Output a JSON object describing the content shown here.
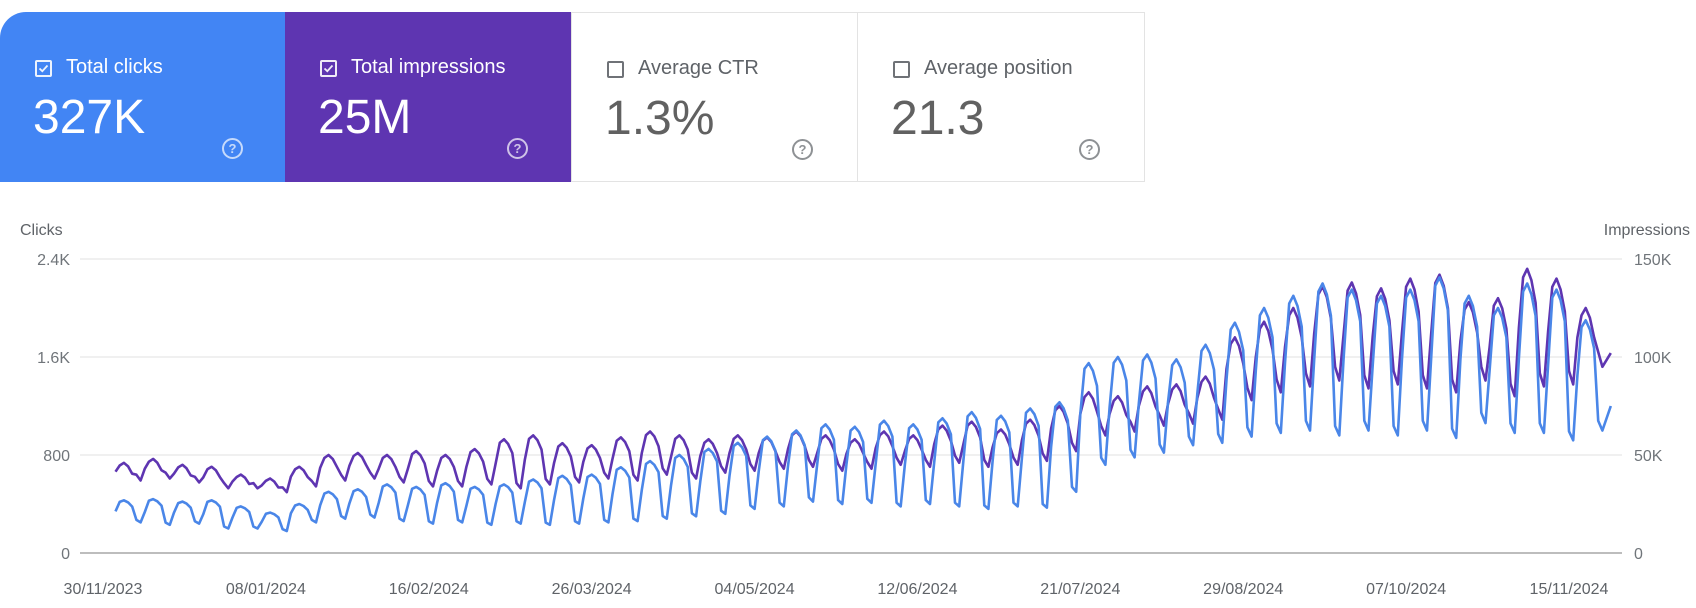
{
  "cards": [
    {
      "label": "Total clicks",
      "value": "327K",
      "checked": true,
      "color": "#4285f4"
    },
    {
      "label": "Total impressions",
      "value": "25M",
      "checked": true,
      "color": "#5e35b1"
    },
    {
      "label": "Average CTR",
      "value": "1.3%",
      "checked": false
    },
    {
      "label": "Average position",
      "value": "21.3",
      "checked": false
    }
  ],
  "help_glyph": "?",
  "chart_data": {
    "type": "line",
    "xlabel": "",
    "left_axis_title": "Clicks",
    "right_axis_title": "Impressions",
    "x_range": [
      "2023-12-03",
      "2024-11-25"
    ],
    "x_tick_labels": [
      "30/11/2023",
      "08/01/2024",
      "16/02/2024",
      "26/03/2024",
      "04/05/2024",
      "12/06/2024",
      "21/07/2024",
      "29/08/2024",
      "07/10/2024",
      "15/11/2024"
    ],
    "left_ylim": [
      0,
      2400
    ],
    "left_tick_labels": [
      "0",
      "800",
      "1.6K",
      "2.4K"
    ],
    "right_ylim": [
      0,
      150000
    ],
    "right_tick_labels": [
      "0",
      "50K",
      "100K",
      "150K"
    ],
    "grid": true,
    "sampling": "weekly high / weekly low",
    "series": [
      {
        "name": "Clicks",
        "axis": "left",
        "color": "#4a86e8",
        "weekly_high": [
          430,
          440,
          420,
          430,
          380,
          330,
          400,
          500,
          520,
          560,
          540,
          570,
          540,
          560,
          600,
          630,
          640,
          700,
          750,
          800,
          850,
          900,
          950,
          1000,
          1050,
          1030,
          1080,
          1050,
          1100,
          1150,
          1120,
          1180,
          1230,
          1550,
          1600,
          1620,
          1580,
          1700,
          1880,
          2000,
          2100,
          2200,
          2150,
          2100,
          2150,
          2250,
          2100,
          2000,
          2200,
          2150,
          1900
        ],
        "weekly_low": [
          250,
          230,
          240,
          200,
          200,
          180,
          250,
          280,
          290,
          260,
          240,
          250,
          230,
          240,
          230,
          240,
          250,
          260,
          280,
          300,
          320,
          360,
          380,
          420,
          400,
          410,
          380,
          400,
          380,
          360,
          380,
          370,
          500,
          720,
          780,
          820,
          880,
          900,
          950,
          980,
          1000,
          960,
          1000,
          960,
          1000,
          940,
          1060,
          980,
          980,
          920,
          1000
        ],
        "last_value": 1200
      },
      {
        "name": "Impressions",
        "axis": "right",
        "color": "#5e35b1",
        "weekly_high": [
          46000,
          48000,
          45000,
          44000,
          40000,
          38000,
          44000,
          50000,
          51000,
          50000,
          52000,
          50000,
          53000,
          58000,
          60000,
          56000,
          55000,
          59000,
          62000,
          60000,
          58000,
          60000,
          59000,
          62000,
          60000,
          58000,
          62000,
          60000,
          65000,
          67000,
          63000,
          68000,
          75000,
          82000,
          80000,
          85000,
          86000,
          90000,
          110000,
          118000,
          125000,
          136000,
          138000,
          135000,
          140000,
          142000,
          128000,
          130000,
          145000,
          140000,
          125000
        ],
        "weekly_low": [
          37000,
          38000,
          36000,
          33000,
          33000,
          31000,
          34000,
          37000,
          38000,
          36000,
          34000,
          34000,
          35000,
          33000,
          35000,
          36000,
          38000,
          37000,
          40000,
          38000,
          41000,
          42000,
          43000,
          44000,
          42000,
          43000,
          45000,
          44000,
          46000,
          44000,
          45000,
          47000,
          52000,
          60000,
          62000,
          65000,
          66000,
          68000,
          78000,
          82000,
          85000,
          88000,
          84000,
          86000,
          84000,
          82000,
          88000,
          80000,
          85000,
          86000,
          95000
        ],
        "last_value": 102000
      }
    ]
  }
}
